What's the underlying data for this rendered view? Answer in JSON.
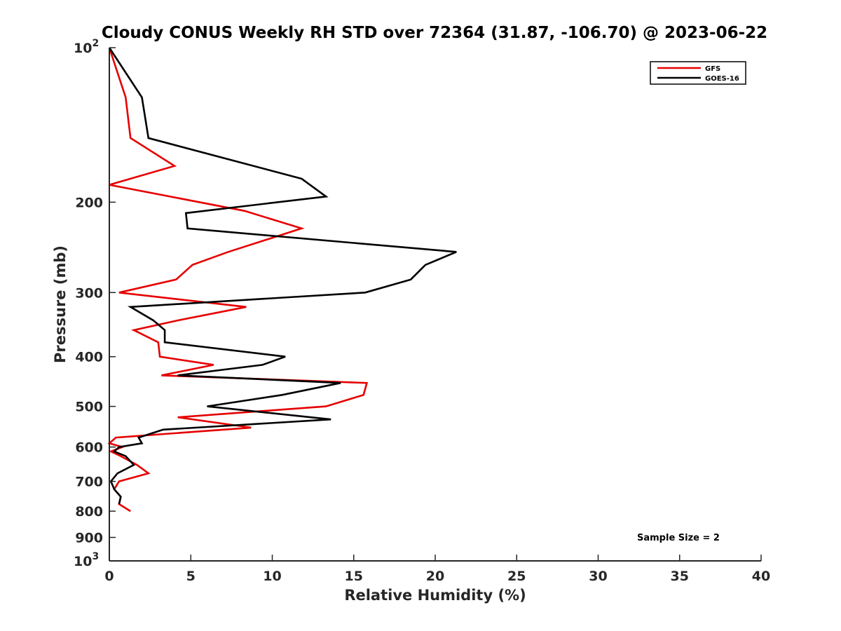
{
  "chart_data": {
    "type": "line",
    "title": "Cloudy CONUS Weekly RH STD over 72364 (31.87, -106.70) @ 2023-06-22",
    "xlabel": "Relative Humidity (%)",
    "ylabel": "Pressure (mb)",
    "xlim": [
      0,
      40
    ],
    "ylim": [
      100,
      1000
    ],
    "y_scale": "log",
    "y_reversed": true,
    "x_ticks": [
      "0",
      "5",
      "10",
      "15",
      "20",
      "25",
      "30",
      "35",
      "40"
    ],
    "y_ticks": [
      {
        "value": 100,
        "label": "10",
        "sup": "2"
      },
      {
        "value": 200,
        "label": "200",
        "sup": ""
      },
      {
        "value": 300,
        "label": "300",
        "sup": ""
      },
      {
        "value": 400,
        "label": "400",
        "sup": ""
      },
      {
        "value": 500,
        "label": "500",
        "sup": ""
      },
      {
        "value": 600,
        "label": "600",
        "sup": ""
      },
      {
        "value": 700,
        "label": "700",
        "sup": ""
      },
      {
        "value": 800,
        "label": "800",
        "sup": ""
      },
      {
        "value": 900,
        "label": "900",
        "sup": ""
      },
      {
        "value": 1000,
        "label": "10",
        "sup": "3"
      }
    ],
    "grid": false,
    "legend_position": "top-right",
    "series": [
      {
        "name": "GFS",
        "color": "#e60000",
        "points": [
          [
            0,
            100
          ],
          [
            1.0,
            125
          ],
          [
            1.3,
            150
          ],
          [
            4.0,
            170
          ],
          [
            0,
            185
          ],
          [
            8.3,
            208
          ],
          [
            11.8,
            225
          ],
          [
            7.3,
            250
          ],
          [
            5.1,
            265
          ],
          [
            4.1,
            283
          ],
          [
            0.6,
            300
          ],
          [
            8.4,
            320
          ],
          [
            4.2,
            340
          ],
          [
            1.5,
            355
          ],
          [
            3.0,
            375
          ],
          [
            3.1,
            400
          ],
          [
            6.4,
            415
          ],
          [
            3.2,
            435
          ],
          [
            15.8,
            450
          ],
          [
            15.6,
            475
          ],
          [
            13.3,
            500
          ],
          [
            4.2,
            525
          ],
          [
            8.7,
            550
          ],
          [
            0.4,
            575
          ],
          [
            0,
            590
          ],
          [
            0.8,
            600
          ],
          [
            0.1,
            612
          ],
          [
            0.7,
            625
          ],
          [
            1.7,
            650
          ],
          [
            2.4,
            675
          ],
          [
            0.6,
            700
          ],
          [
            0.3,
            725
          ],
          [
            0.7,
            750
          ],
          [
            0.6,
            775
          ],
          [
            1.3,
            800
          ]
        ]
      },
      {
        "name": "GOES-16",
        "color": "#000000",
        "points": [
          [
            0,
            100
          ],
          [
            2.0,
            125
          ],
          [
            2.4,
            150
          ],
          [
            11.8,
            180
          ],
          [
            13.3,
            195
          ],
          [
            4.7,
            210
          ],
          [
            4.8,
            225
          ],
          [
            21.3,
            250
          ],
          [
            19.4,
            265
          ],
          [
            18.5,
            283
          ],
          [
            15.7,
            300
          ],
          [
            1.3,
            320
          ],
          [
            2.7,
            340
          ],
          [
            3.4,
            355
          ],
          [
            3.4,
            375
          ],
          [
            10.8,
            400
          ],
          [
            9.4,
            415
          ],
          [
            4.2,
            435
          ],
          [
            14.2,
            450
          ],
          [
            10.6,
            475
          ],
          [
            6.0,
            500
          ],
          [
            13.6,
            530
          ],
          [
            3.3,
            555
          ],
          [
            1.8,
            575
          ],
          [
            2.0,
            590
          ],
          [
            0.6,
            600
          ],
          [
            0.3,
            612
          ],
          [
            1.0,
            625
          ],
          [
            1.5,
            650
          ],
          [
            0.5,
            675
          ],
          [
            0.1,
            700
          ],
          [
            0.3,
            725
          ],
          [
            0.7,
            750
          ],
          [
            0.6,
            775
          ]
        ]
      }
    ],
    "annotations": [
      {
        "text": "Sample Size = 2",
        "position": "bottom-right"
      }
    ]
  }
}
